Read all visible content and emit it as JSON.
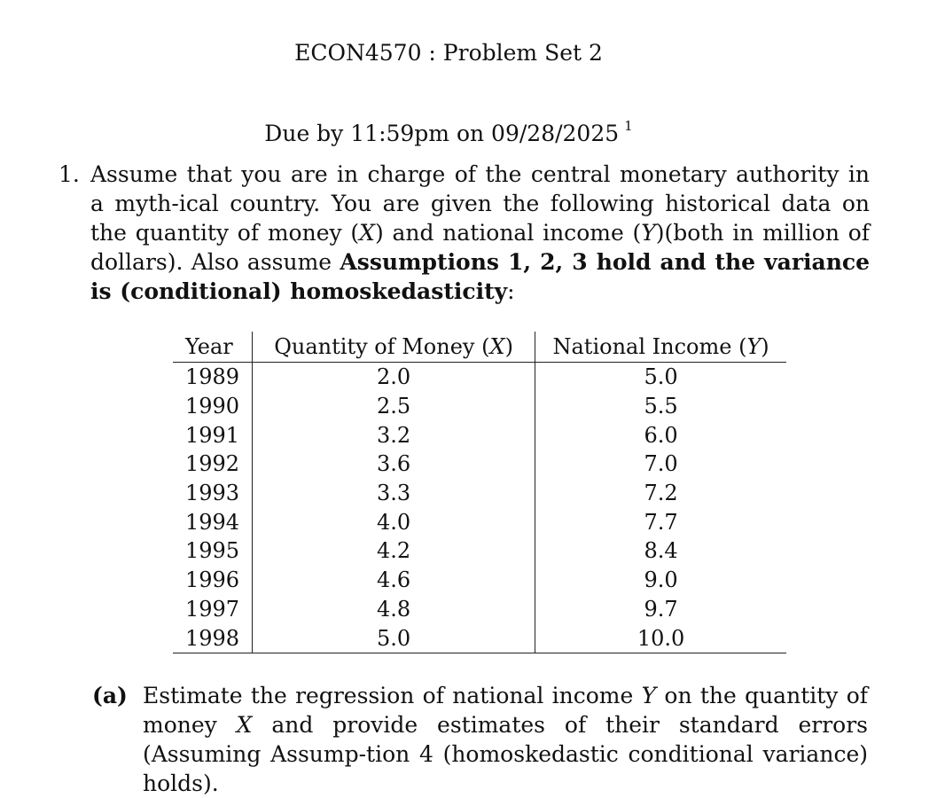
{
  "document": {
    "title": "ECON4570 : Problem Set 2",
    "due": "Due by 11:59pm on 09/28/2025",
    "footnote_mark": "1"
  },
  "problem": {
    "number": "1.",
    "text_part1": "Assume that you are in charge of the central monetary authority in a myth-ical country. You are given the following historical data on the quantity of money (",
    "var_x": "X",
    "text_part2": ") and national income (",
    "var_y": "Y",
    "text_part3": ")(both in million of dollars). Also assume ",
    "bold_text": "Assumptions 1, 2, 3 hold and the variance is (conditional) homoskedasticity",
    "text_part4": ":"
  },
  "table": {
    "headers": {
      "year": "Year",
      "money": "Quantity of Money (X)",
      "income": "National Income (Y)"
    },
    "rows": [
      {
        "year": "1989",
        "money": "2.0",
        "income": "5.0"
      },
      {
        "year": "1990",
        "money": "2.5",
        "income": "5.5"
      },
      {
        "year": "1991",
        "money": "3.2",
        "income": "6.0"
      },
      {
        "year": "1992",
        "money": "3.6",
        "income": "7.0"
      },
      {
        "year": "1993",
        "money": "3.3",
        "income": "7.2"
      },
      {
        "year": "1994",
        "money": "4.0",
        "income": "7.7"
      },
      {
        "year": "1995",
        "money": "4.2",
        "income": "8.4"
      },
      {
        "year": "1996",
        "money": "4.6",
        "income": "9.0"
      },
      {
        "year": "1997",
        "money": "4.8",
        "income": "9.7"
      },
      {
        "year": "1998",
        "money": "5.0",
        "income": "10.0"
      }
    ]
  },
  "subpart_a": {
    "label": "(a)",
    "text_part1": "Estimate the regression of national income ",
    "var_y": "Y",
    "text_part2": " on the quantity of money ",
    "var_x": "X",
    "text_part3": " and provide estimates of their standard errors (Assuming Assump-tion 4 (homoskedastic conditional variance) holds)."
  }
}
